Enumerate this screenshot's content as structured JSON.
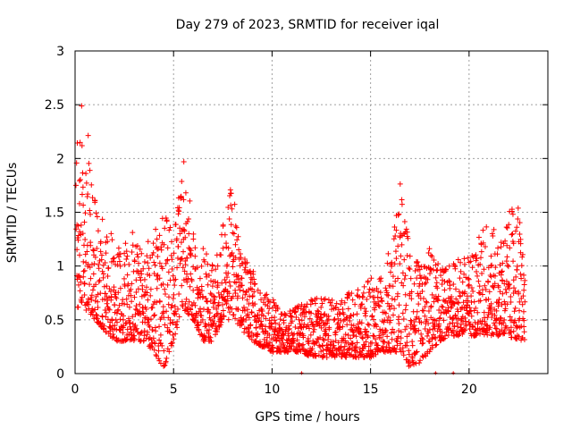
{
  "chart_data": {
    "type": "scatter",
    "title": "Day 279 of 2023, SRMTID for receiver iqal",
    "xlabel": "GPS time / hours",
    "ylabel": "SRMTID / TECUs",
    "xlim": [
      0,
      24
    ],
    "ylim": [
      0,
      3
    ],
    "xticks": [
      0,
      5,
      10,
      15,
      20
    ],
    "xtick_labels": [
      "0",
      "5",
      "10",
      "15",
      "20"
    ],
    "yticks": [
      0,
      0.5,
      1,
      1.5,
      2,
      2.5,
      3
    ],
    "ytick_labels": [
      "0",
      "0.5",
      "1",
      "1.5",
      "2",
      "2.5",
      "3"
    ],
    "grid": true,
    "marker": "plus",
    "color": "#ff0000",
    "series": [
      {
        "name": "SRMTID",
        "profile_note": "approximate envelope of the dense point cloud, sampled hourly",
        "x": [
          0,
          0.2,
          0.5,
          1,
          1.5,
          2,
          2.5,
          3,
          3.5,
          4,
          4.5,
          5,
          5.5,
          6,
          6.5,
          7,
          7.5,
          8,
          8.5,
          9,
          9.5,
          10,
          10.5,
          11,
          11.5,
          12,
          12.5,
          13,
          13.5,
          14,
          14.5,
          15,
          15.5,
          16,
          16.5,
          17,
          17.5,
          18,
          18.5,
          19,
          19.5,
          20,
          20.5,
          21,
          21.5,
          22,
          22.5,
          23
        ],
        "y_low": [
          0.5,
          0.6,
          0.6,
          0.5,
          0.4,
          0.3,
          0.3,
          0.3,
          0.3,
          0.2,
          0.05,
          0.3,
          0.6,
          0.5,
          0.3,
          0.3,
          0.5,
          0.5,
          0.4,
          0.3,
          0.25,
          0.2,
          0.2,
          0.2,
          0.2,
          0.15,
          0.15,
          0.15,
          0.15,
          0.15,
          0.15,
          0.15,
          0.2,
          0.2,
          0.2,
          0.05,
          0.1,
          0.2,
          0.3,
          0.35,
          0.35,
          0.35,
          0.35,
          0.35,
          0.35,
          0.35,
          0.3,
          0.3
        ],
        "y_high": [
          1.8,
          2.6,
          2.5,
          1.7,
          1.4,
          1.3,
          1.2,
          1.35,
          1.2,
          1.3,
          1.6,
          1.3,
          2.0,
          1.4,
          1.2,
          1.0,
          1.4,
          1.8,
          1.1,
          1.0,
          0.8,
          0.7,
          0.6,
          0.6,
          0.7,
          0.7,
          0.7,
          0.7,
          0.7,
          0.8,
          0.8,
          0.9,
          0.9,
          1.2,
          1.8,
          1.2,
          1.0,
          1.2,
          1.0,
          1.0,
          1.1,
          1.1,
          1.3,
          1.5,
          1.2,
          1.5,
          1.6,
          0.8
        ]
      }
    ]
  }
}
